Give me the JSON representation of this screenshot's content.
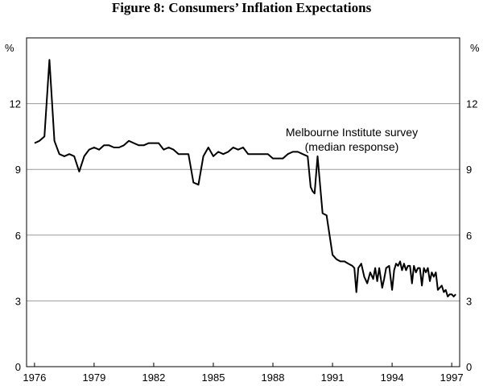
{
  "chart_data": {
    "type": "line",
    "title": "Figure 8: Consumers’ Inflation Expectations",
    "ylabel_left": "%",
    "ylabel_right": "%",
    "xlabel": "",
    "ylim": [
      0,
      15
    ],
    "xlim": [
      1975.6,
      1997.4
    ],
    "y_ticks": [
      0,
      3,
      6,
      9,
      12
    ],
    "x_ticks": [
      1976,
      1979,
      1982,
      1985,
      1988,
      1991,
      1994,
      1997
    ],
    "gridlines": true,
    "annotation": [
      "Melbourne Institute survey",
      "(median response)"
    ],
    "series": [
      {
        "name": "Melbourne Institute survey (median response)",
        "x": [
          1976.0,
          1976.25,
          1976.5,
          1976.75,
          1977.0,
          1977.25,
          1977.5,
          1977.75,
          1978.0,
          1978.25,
          1978.5,
          1978.75,
          1979.0,
          1979.25,
          1979.5,
          1979.75,
          1980.0,
          1980.25,
          1980.5,
          1980.75,
          1981.0,
          1981.25,
          1981.5,
          1981.75,
          1982.0,
          1982.25,
          1982.5,
          1982.75,
          1983.0,
          1983.25,
          1983.5,
          1983.75,
          1984.0,
          1984.25,
          1984.5,
          1984.75,
          1985.0,
          1985.25,
          1985.5,
          1985.75,
          1986.0,
          1986.25,
          1986.5,
          1986.75,
          1987.0,
          1987.25,
          1987.5,
          1987.75,
          1988.0,
          1988.25,
          1988.5,
          1988.75,
          1989.0,
          1989.25,
          1989.5,
          1989.75,
          1989.9,
          1990.0,
          1990.1,
          1990.25,
          1990.5,
          1990.7,
          1990.85,
          1991.0,
          1991.2,
          1991.4,
          1991.6,
          1991.8,
          1992.0,
          1992.1,
          1992.2,
          1992.3,
          1992.45,
          1992.6,
          1992.75,
          1992.9,
          1993.05,
          1993.15,
          1993.25,
          1993.35,
          1993.5,
          1993.6,
          1993.7,
          1993.85,
          1994.0,
          1994.1,
          1994.2,
          1994.3,
          1994.4,
          1994.5,
          1994.6,
          1994.7,
          1994.8,
          1994.9,
          1995.0,
          1995.1,
          1995.2,
          1995.3,
          1995.4,
          1995.5,
          1995.6,
          1995.7,
          1995.8,
          1995.9,
          1996.0,
          1996.1,
          1996.2,
          1996.3,
          1996.4,
          1996.5,
          1996.6,
          1996.7,
          1996.8,
          1996.9,
          1997.0,
          1997.1,
          1997.2
        ],
        "values": [
          10.2,
          10.3,
          10.5,
          14.0,
          10.3,
          9.7,
          9.6,
          9.7,
          9.6,
          8.9,
          9.6,
          9.9,
          10.0,
          9.9,
          10.1,
          10.1,
          10.0,
          10.0,
          10.1,
          10.3,
          10.2,
          10.1,
          10.1,
          10.2,
          10.2,
          10.2,
          9.9,
          10.0,
          9.9,
          9.7,
          9.7,
          9.7,
          8.4,
          8.3,
          9.6,
          10.0,
          9.6,
          9.8,
          9.7,
          9.8,
          10.0,
          9.9,
          10.0,
          9.7,
          9.7,
          9.7,
          9.7,
          9.7,
          9.5,
          9.5,
          9.5,
          9.7,
          9.8,
          9.8,
          9.7,
          9.6,
          8.2,
          8.0,
          7.9,
          9.6,
          7.0,
          6.9,
          6.0,
          5.1,
          4.9,
          4.8,
          4.8,
          4.7,
          4.6,
          4.5,
          3.4,
          4.5,
          4.7,
          4.1,
          3.8,
          4.3,
          4.0,
          4.5,
          3.9,
          4.5,
          3.6,
          4.0,
          4.5,
          4.6,
          3.5,
          4.4,
          4.7,
          4.6,
          4.8,
          4.4,
          4.7,
          4.4,
          4.6,
          4.6,
          3.8,
          4.6,
          4.3,
          4.5,
          4.5,
          3.7,
          4.5,
          4.3,
          4.5,
          3.9,
          4.3,
          4.1,
          4.3,
          3.5,
          3.6,
          3.7,
          3.4,
          3.5,
          3.2,
          3.3,
          3.3,
          3.2,
          3.3
        ]
      }
    ]
  }
}
